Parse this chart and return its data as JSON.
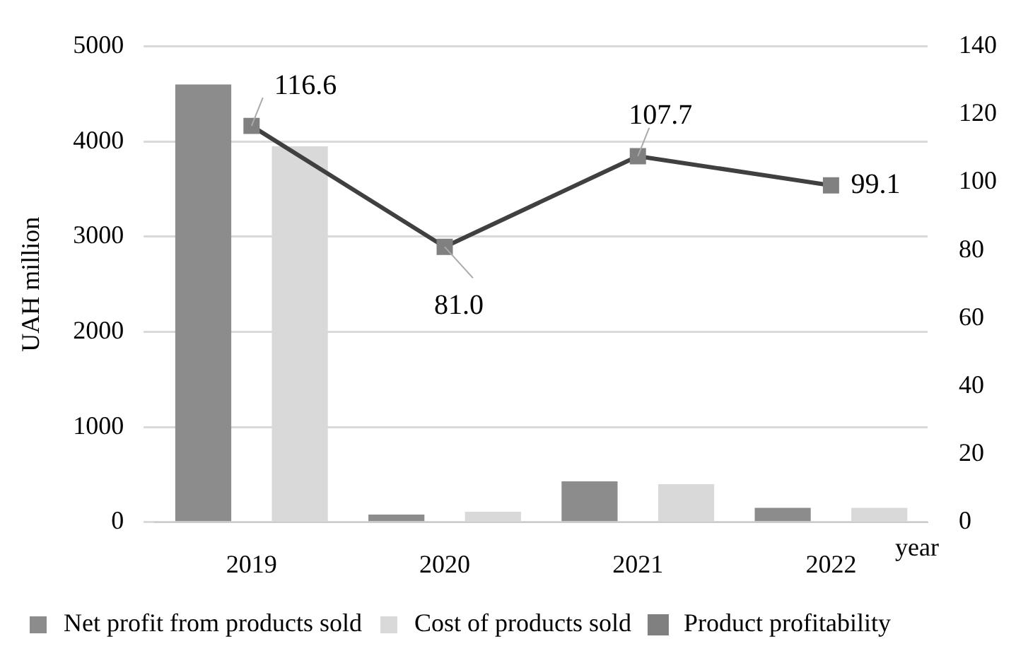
{
  "chart_data": {
    "type": "bar",
    "categories": [
      "2019",
      "2020",
      "2021",
      "2022"
    ],
    "xlabel": "year",
    "ylabel": "UAH million",
    "series": [
      {
        "name": "Net profit from products sold",
        "color": "#8c8c8c",
        "values": [
          4600,
          80,
          430,
          150
        ]
      },
      {
        "name": "Cost of products sold",
        "color": "#d9d9d9",
        "values": [
          3950,
          110,
          400,
          150
        ]
      },
      {
        "name": "Product profitability",
        "type": "line",
        "axis": "y2",
        "color": "#404040",
        "values": [
          116.6,
          81.0,
          107.7,
          99.1
        ],
        "value_labels": [
          "116.6",
          "81.0",
          "107.7",
          "99.1"
        ],
        "marker": "square"
      }
    ],
    "ylim": [
      0,
      5000
    ],
    "yticks": [
      0,
      1000,
      2000,
      3000,
      4000,
      5000
    ],
    "y2lim": [
      0,
      140
    ],
    "y2ticks": [
      0,
      20,
      40,
      60,
      80,
      100,
      120,
      140
    ],
    "grid": "y",
    "legend": "bottom"
  }
}
